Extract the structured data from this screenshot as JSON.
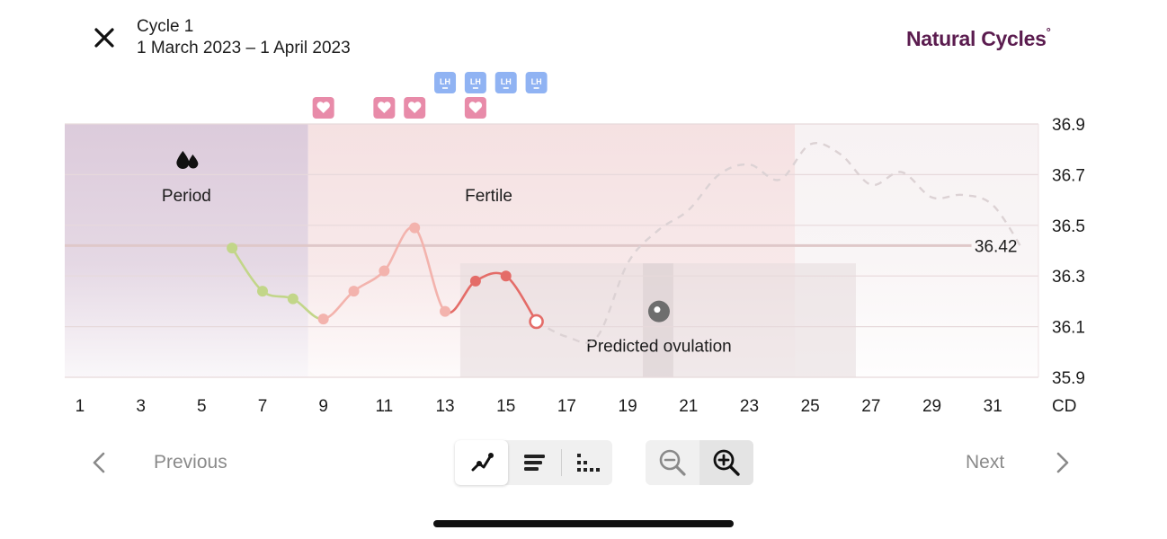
{
  "header": {
    "title": "Cycle 1",
    "dates": "1 March 2023 – 1 April 2023",
    "logo": "Natural Cycles",
    "logo_mark": "°"
  },
  "icons": {
    "close": "close-icon",
    "period": "drops-icon",
    "ovulation": "ovulation-pin-icon",
    "intercourse": "heart-icon",
    "lh_test": "lh-test-icon",
    "graph_view": "line-graph-icon",
    "list_view": "list-view-icon",
    "dots_view": "dot-grid-icon",
    "zoom_out": "zoom-out-icon",
    "zoom_in": "zoom-in-icon"
  },
  "colors": {
    "period_band": "#dccbdb",
    "fertile_band": "#f5e1e2",
    "luteal_band": "#f7f2f3",
    "infertile_temp": "#c2d689",
    "fertile_temp_light": "#f3b3ad",
    "fertile_temp_dark": "#e46c68",
    "heart_badge": "#e88ba9",
    "lh_badge": "#90b3f3",
    "logo": "#5b1c4f"
  },
  "chart_data": {
    "type": "line",
    "x_unit": "CD",
    "y_ticks": [
      "36.9",
      "36.7",
      "36.5",
      "36.3",
      "36.1",
      "35.9"
    ],
    "ylim": [
      35.9,
      36.9
    ],
    "xlim": [
      0.5,
      32.5
    ],
    "x_tick_labels": [
      "1",
      "3",
      "5",
      "7",
      "9",
      "11",
      "13",
      "15",
      "17",
      "19",
      "21",
      "23",
      "25",
      "27",
      "29",
      "31"
    ],
    "x_ticks": [
      1,
      3,
      5,
      7,
      9,
      11,
      13,
      15,
      17,
      19,
      21,
      23,
      25,
      27,
      29,
      31
    ],
    "phases": [
      {
        "label": "Period",
        "start": 0.5,
        "end": 8.5,
        "kind": "period"
      },
      {
        "label": "Fertile",
        "start": 8.5,
        "end": 24.5,
        "kind": "fertile"
      },
      {
        "label": "",
        "start": 24.5,
        "end": 32.5,
        "kind": "luteal"
      }
    ],
    "cover_line": {
      "value": 36.42,
      "label": "36.42"
    },
    "ovulation": {
      "label": "Predicted ovulation",
      "day": 20,
      "window": [
        19.5,
        20.5
      ]
    },
    "shaded_windows": [
      [
        13.5,
        26.5
      ]
    ],
    "series": [
      {
        "kind": "measured",
        "points": [
          {
            "day": 6,
            "temp": 36.41,
            "status": "infertile"
          },
          {
            "day": 7,
            "temp": 36.24,
            "status": "infertile"
          },
          {
            "day": 8,
            "temp": 36.21,
            "status": "infertile"
          },
          {
            "day": 9,
            "temp": 36.13,
            "status": "fertile-light"
          },
          {
            "day": 10,
            "temp": 36.24,
            "status": "fertile-light"
          },
          {
            "day": 11,
            "temp": 36.32,
            "status": "fertile-light"
          },
          {
            "day": 12,
            "temp": 36.49,
            "status": "fertile-light"
          },
          {
            "day": 13,
            "temp": 36.16,
            "status": "fertile-light"
          },
          {
            "day": 14,
            "temp": 36.28,
            "status": "fertile-dark"
          },
          {
            "day": 15,
            "temp": 36.3,
            "status": "fertile-dark"
          },
          {
            "day": 16,
            "temp": 36.12,
            "status": "today"
          }
        ]
      },
      {
        "kind": "predicted",
        "points": [
          {
            "day": 16,
            "temp": 36.12
          },
          {
            "day": 17,
            "temp": 36.06
          },
          {
            "day": 18,
            "temp": 36.06
          },
          {
            "day": 19,
            "temp": 36.35
          },
          {
            "day": 20,
            "temp": 36.48
          },
          {
            "day": 21,
            "temp": 36.56
          },
          {
            "day": 22,
            "temp": 36.7
          },
          {
            "day": 23,
            "temp": 36.74
          },
          {
            "day": 24,
            "temp": 36.68
          },
          {
            "day": 25,
            "temp": 36.82
          },
          {
            "day": 26,
            "temp": 36.78
          },
          {
            "day": 27,
            "temp": 36.66
          },
          {
            "day": 28,
            "temp": 36.71
          },
          {
            "day": 29,
            "temp": 36.61
          },
          {
            "day": 30,
            "temp": 36.62
          },
          {
            "day": 31,
            "temp": 36.58
          },
          {
            "day": 32,
            "temp": 36.4
          }
        ]
      }
    ],
    "intercourse_days": [
      9,
      11,
      12,
      14
    ],
    "lh_test_days": [
      13,
      14,
      15,
      16
    ],
    "lh_label": "LH",
    "grid": true
  },
  "nav": {
    "previous": "Previous",
    "next": "Next"
  }
}
